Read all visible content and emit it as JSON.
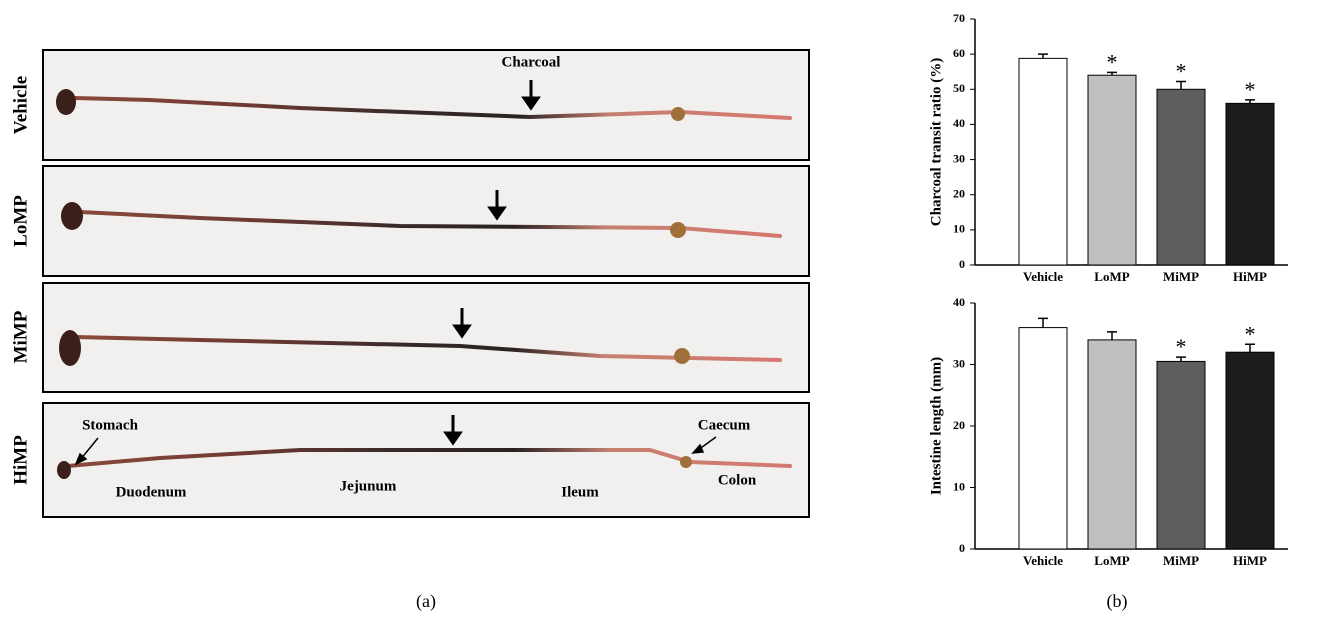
{
  "panel_a": {
    "label": "(a)",
    "rows": [
      "Vehicle",
      "LoMP",
      "MiMP",
      "HiMP"
    ],
    "charcoal_label": "Charcoal",
    "segments": {
      "stomach": "Stomach",
      "duodenum": "Duodenum",
      "jejunum": "Jejunum",
      "ileum": "Ileum",
      "caecum": "Caecum",
      "colon": "Colon"
    }
  },
  "panel_b": {
    "label": "(b)"
  },
  "chart_data": [
    {
      "type": "bar",
      "ylabel": "Charcoal transit ratio (%)",
      "categories": [
        "Vehicle",
        "LoMP",
        "MiMP",
        "HiMP"
      ],
      "values": [
        58.8,
        54,
        50,
        46
      ],
      "errors": [
        1.2,
        0.8,
        2.2,
        1.0
      ],
      "significance": [
        null,
        "*",
        "*",
        "*"
      ],
      "colors": [
        "#ffffff",
        "#c0c0c0",
        "#5e5e5e",
        "#1c1c1c"
      ],
      "ylim": [
        0,
        70
      ],
      "yticks": [
        0,
        10,
        20,
        30,
        40,
        50,
        60,
        70
      ]
    },
    {
      "type": "bar",
      "ylabel": "Intestine length (mm)",
      "categories": [
        "Vehicle",
        "LoMP",
        "MiMP",
        "HiMP"
      ],
      "values": [
        36,
        34,
        30.5,
        32
      ],
      "errors": [
        1.5,
        1.3,
        0.7,
        1.3
      ],
      "significance": [
        null,
        null,
        "*",
        "*"
      ],
      "colors": [
        "#ffffff",
        "#c0c0c0",
        "#5e5e5e",
        "#1c1c1c"
      ],
      "ylim": [
        0,
        40
      ],
      "yticks": [
        0,
        10,
        20,
        30,
        40
      ]
    }
  ]
}
